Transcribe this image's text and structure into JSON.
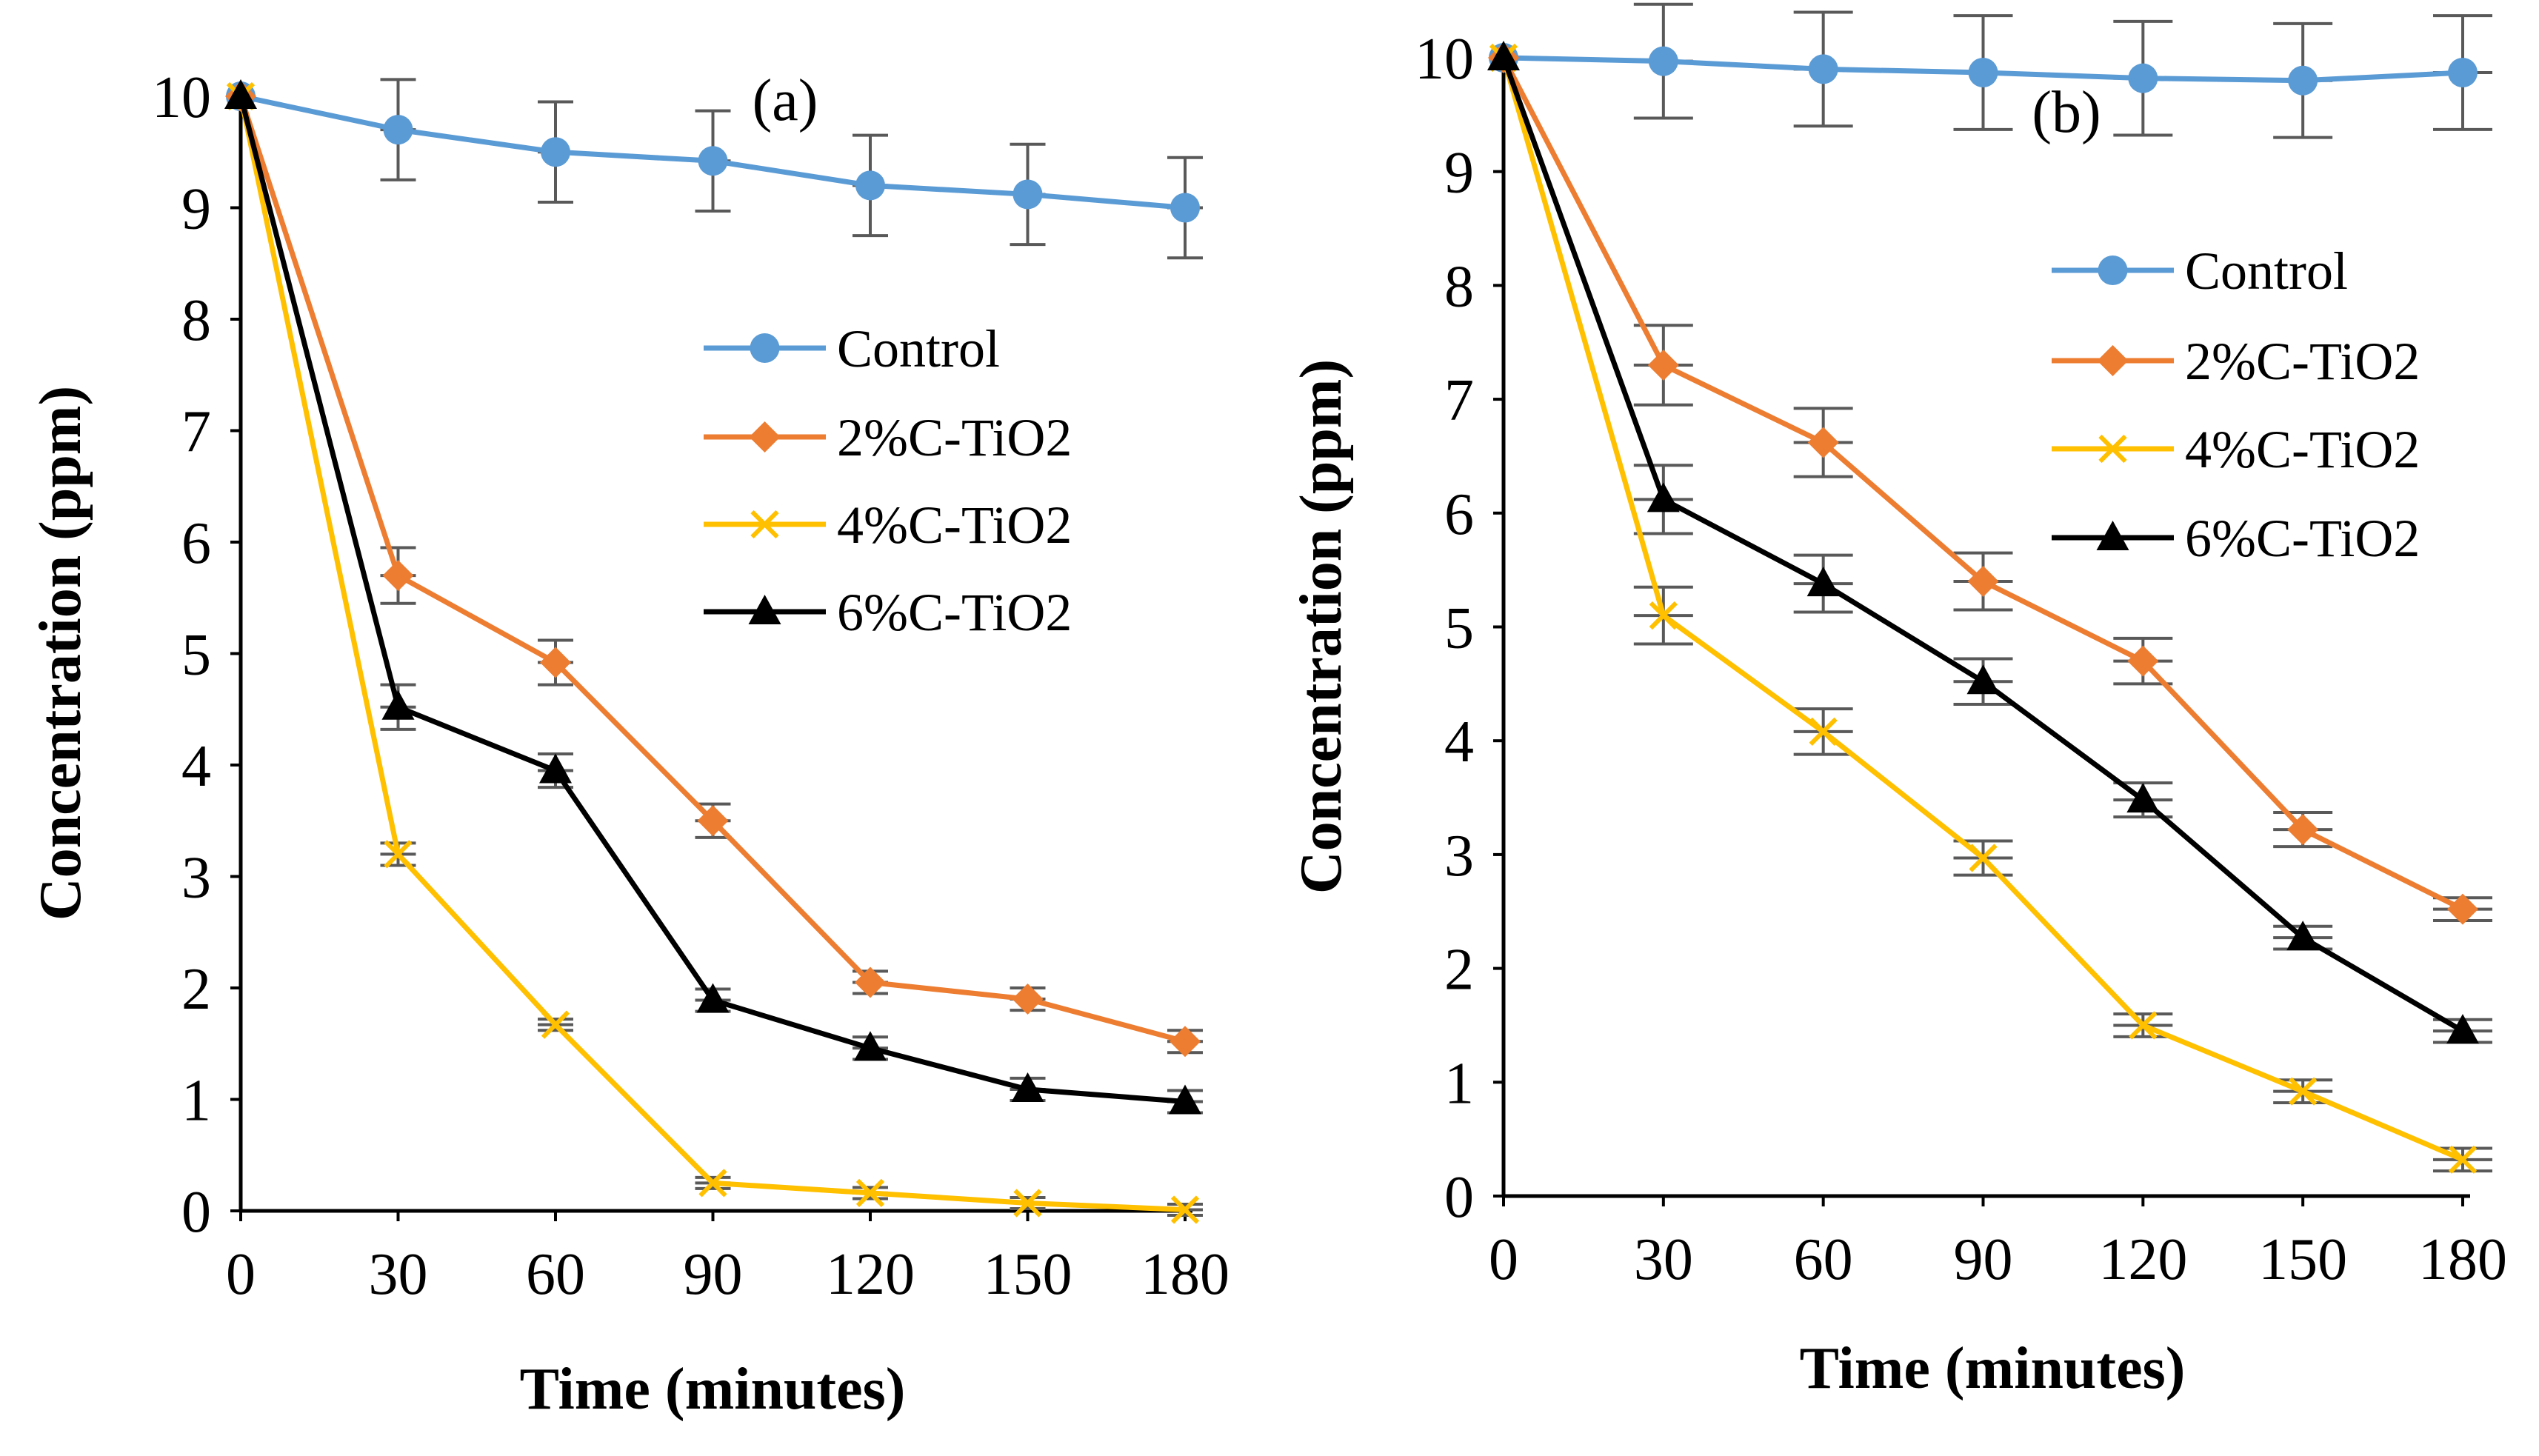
{
  "chart_data": [
    {
      "type": "line",
      "panel_label": "(a)",
      "xlabel": "Time (minutes)",
      "ylabel": "Concentration (ppm)",
      "x": [
        0,
        30,
        60,
        90,
        120,
        150,
        180
      ],
      "xticks": [
        0,
        30,
        60,
        90,
        120,
        150,
        180
      ],
      "yticks": [
        0,
        1,
        2,
        3,
        4,
        5,
        6,
        7,
        8,
        9,
        10
      ],
      "xlim": [
        0,
        180
      ],
      "ylim": [
        0,
        10
      ],
      "legend_position": "center-right",
      "series": [
        {
          "name": "Control",
          "color": "#5b9bd5",
          "marker": "circle",
          "values": [
            10,
            9.7,
            9.5,
            9.42,
            9.2,
            9.12,
            9.0
          ],
          "errors": [
            0,
            0.45,
            0.45,
            0.45,
            0.45,
            0.45,
            0.45
          ]
        },
        {
          "name": "2%C-TiO2",
          "color": "#ed7d31",
          "marker": "diamond",
          "values": [
            10,
            5.7,
            4.92,
            3.5,
            2.05,
            1.9,
            1.52
          ],
          "errors": [
            0,
            0.25,
            0.2,
            0.15,
            0.1,
            0.1,
            0.1
          ]
        },
        {
          "name": "4%C-TiO2",
          "color": "#ffc000",
          "marker": "x",
          "values": [
            10,
            3.2,
            1.67,
            0.25,
            0.16,
            0.07,
            0.01
          ],
          "errors": [
            0,
            0.1,
            0.05,
            0.05,
            0.05,
            0.05,
            0.05
          ]
        },
        {
          "name": "6%C-TiO2",
          "color": "#000000",
          "marker": "triangle",
          "values": [
            10,
            4.52,
            3.95,
            1.89,
            1.46,
            1.09,
            0.98
          ],
          "errors": [
            0,
            0.2,
            0.15,
            0.1,
            0.1,
            0.1,
            0.1
          ]
        }
      ]
    },
    {
      "type": "line",
      "panel_label": "(b)",
      "xlabel": "Time (minutes)",
      "ylabel": "Concentration (ppm)",
      "x": [
        0,
        30,
        60,
        90,
        120,
        150,
        180
      ],
      "xticks": [
        0,
        30,
        60,
        90,
        120,
        150,
        180
      ],
      "yticks": [
        0,
        1,
        2,
        3,
        4,
        5,
        6,
        7,
        8,
        9,
        10
      ],
      "xlim": [
        0,
        180
      ],
      "ylim": [
        0,
        10
      ],
      "legend_position": "center-right",
      "series": [
        {
          "name": "Control",
          "color": "#5b9bd5",
          "marker": "circle",
          "values": [
            10,
            9.97,
            9.9,
            9.87,
            9.82,
            9.8,
            9.87
          ],
          "errors": [
            0,
            0.5,
            0.5,
            0.5,
            0.5,
            0.5,
            0.5
          ]
        },
        {
          "name": "2%C-TiO2",
          "color": "#ed7d31",
          "marker": "diamond",
          "values": [
            10,
            7.3,
            6.62,
            5.4,
            4.7,
            3.22,
            2.52
          ],
          "errors": [
            0,
            0.35,
            0.3,
            0.25,
            0.2,
            0.15,
            0.1
          ]
        },
        {
          "name": "4%C-TiO2",
          "color": "#ffc000",
          "marker": "x",
          "values": [
            10,
            5.1,
            4.08,
            2.97,
            1.5,
            0.92,
            0.32
          ],
          "errors": [
            0,
            0.25,
            0.2,
            0.15,
            0.1,
            0.1,
            0.1
          ]
        },
        {
          "name": "6%C-TiO2",
          "color": "#000000",
          "marker": "triangle",
          "values": [
            10,
            6.12,
            5.38,
            4.52,
            3.48,
            2.27,
            1.45
          ],
          "errors": [
            0,
            0.3,
            0.25,
            0.2,
            0.15,
            0.1,
            0.1
          ]
        }
      ]
    }
  ]
}
